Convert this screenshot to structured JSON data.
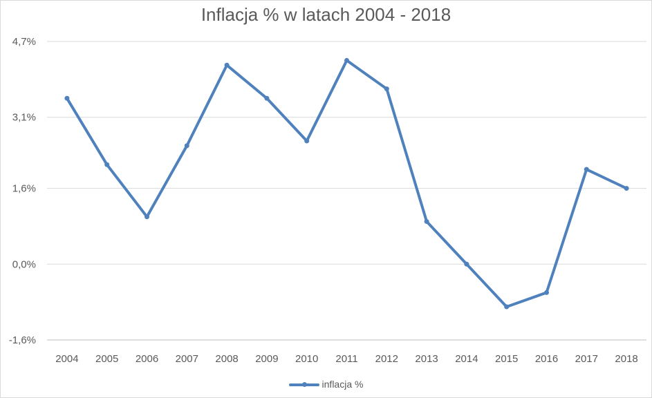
{
  "chart_data": {
    "type": "line",
    "title": "Inflacja % w latach 2004 - 2018",
    "categories": [
      "2004",
      "2005",
      "2006",
      "2007",
      "2008",
      "2009",
      "2010",
      "2011",
      "2012",
      "2013",
      "2014",
      "2015",
      "2016",
      "2017",
      "2018"
    ],
    "series": [
      {
        "name": "inflacja %",
        "values": [
          3.5,
          2.1,
          1.0,
          2.5,
          4.2,
          3.5,
          2.6,
          4.3,
          3.7,
          0.9,
          0.0,
          -0.9,
          -0.6,
          2.0,
          1.6
        ]
      }
    ],
    "yticks": [
      "-1,6%",
      "0,0%",
      "1,6%",
      "3,1%",
      "4,7%"
    ],
    "ytick_values": [
      -1.6,
      0.0,
      1.6,
      3.1,
      4.7
    ],
    "ylim": [
      -1.6,
      4.7
    ],
    "xlabel": "",
    "ylabel": "",
    "grid": true,
    "legend_position": "bottom",
    "color": "#4f81bd"
  }
}
